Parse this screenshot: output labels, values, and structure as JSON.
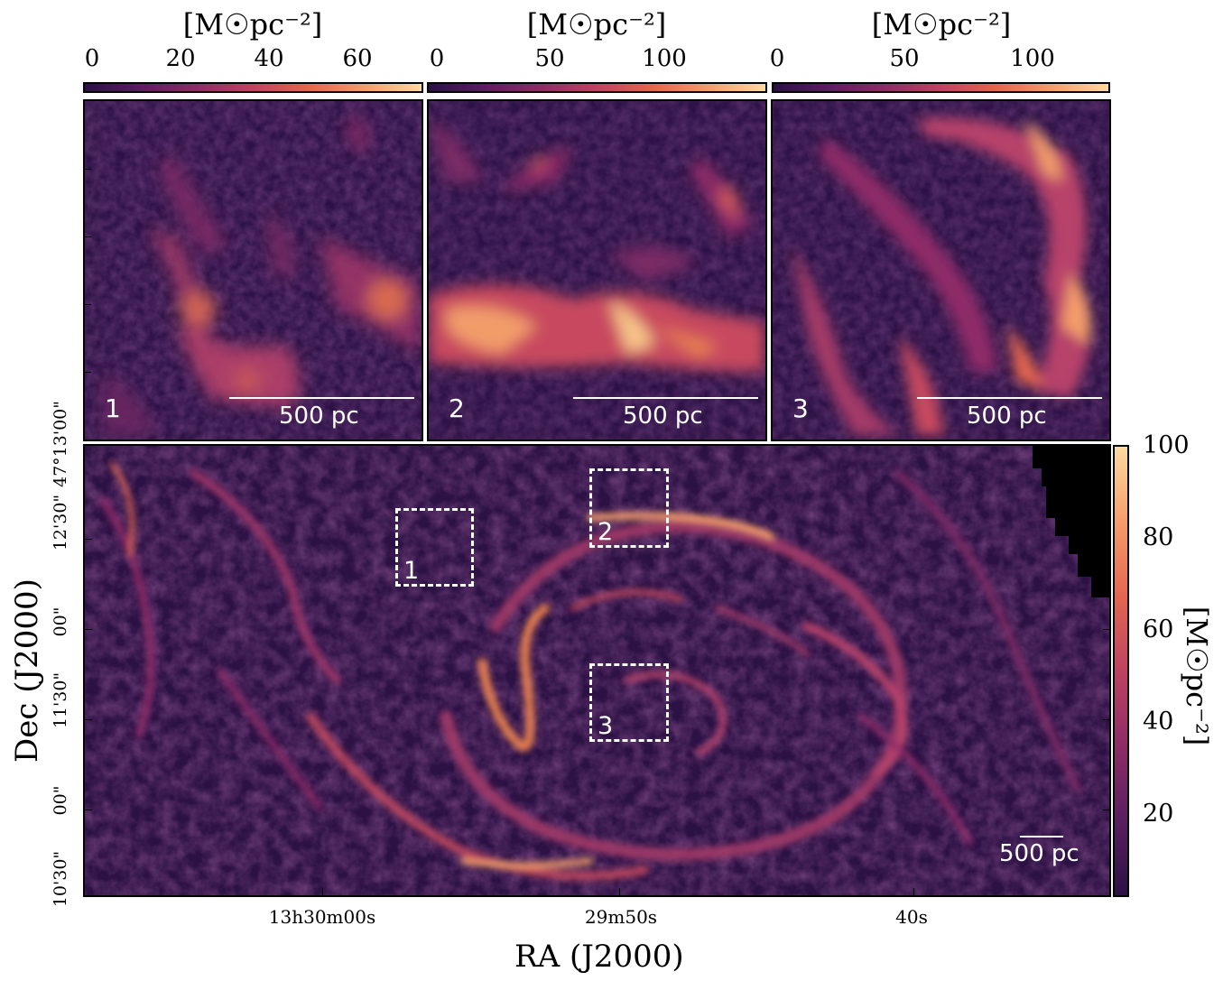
{
  "top_panels": [
    {
      "colorbar_label": "[M☉pc⁻²]",
      "ticks": [
        "0",
        "20",
        "40",
        "60"
      ],
      "number": "1",
      "scalebar": "500 pc"
    },
    {
      "colorbar_label": "[M☉pc⁻²]",
      "ticks": [
        "0",
        "50",
        "100"
      ],
      "number": "2",
      "scalebar": "500 pc"
    },
    {
      "colorbar_label": "[M☉pc⁻²]",
      "ticks": [
        "0",
        "50",
        "100"
      ],
      "number": "3",
      "scalebar": "500 pc"
    }
  ],
  "main": {
    "colorbar_label": "[M☉pc⁻²]",
    "colorbar_ticks": [
      "100",
      "80",
      "60",
      "40",
      "20"
    ],
    "scalebar": "500 pc",
    "zoom_boxes": [
      "1",
      "2",
      "3"
    ],
    "y_ticks": [
      "47°13'00\"",
      "12'30\"",
      "00\"",
      "11'30\"",
      "00\"",
      "10'30\""
    ],
    "x_ticks": [
      "13h30m00s",
      "29m50s",
      "40s"
    ],
    "x_title": "RA (J2000)",
    "y_title": "Dec (J2000)"
  },
  "colors": {
    "cmap": [
      "#2c1145",
      "#5a1e60",
      "#8e2c67",
      "#c04262",
      "#e4664f",
      "#f59d6a",
      "#fdd9a0"
    ],
    "background": "#2c1145"
  }
}
